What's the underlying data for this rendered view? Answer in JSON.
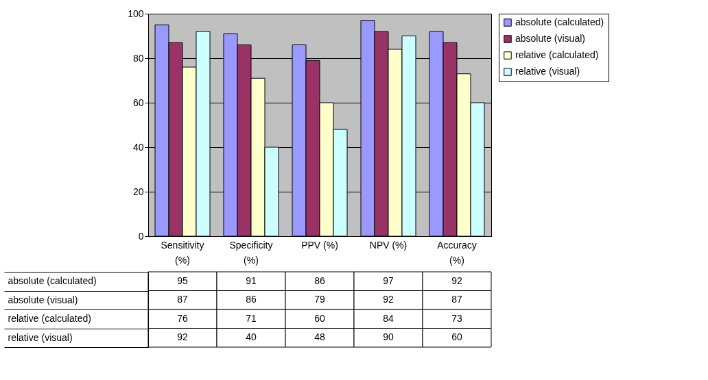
{
  "chart_data": {
    "type": "bar",
    "categories": [
      "Sensitivity (%)",
      "Specificity (%)",
      "PPV (%)",
      "NPV (%)",
      "Accuracy (%)"
    ],
    "series": [
      {
        "name": "absolute (calculated)",
        "color": "#9999ff",
        "values": [
          95,
          91,
          86,
          97,
          92
        ]
      },
      {
        "name": "absolute (visual)",
        "color": "#993366",
        "values": [
          87,
          86,
          79,
          92,
          87
        ]
      },
      {
        "name": "relative (calculated)",
        "color": "#ffffcc",
        "values": [
          76,
          71,
          60,
          84,
          73
        ]
      },
      {
        "name": "relative (visual)",
        "color": "#ccffff",
        "values": [
          92,
          40,
          48,
          90,
          60
        ]
      }
    ],
    "ylim": [
      0,
      100
    ],
    "yticks": [
      0,
      20,
      40,
      60,
      80,
      100
    ],
    "grid": "y",
    "legend": "right",
    "data_labels": true
  }
}
